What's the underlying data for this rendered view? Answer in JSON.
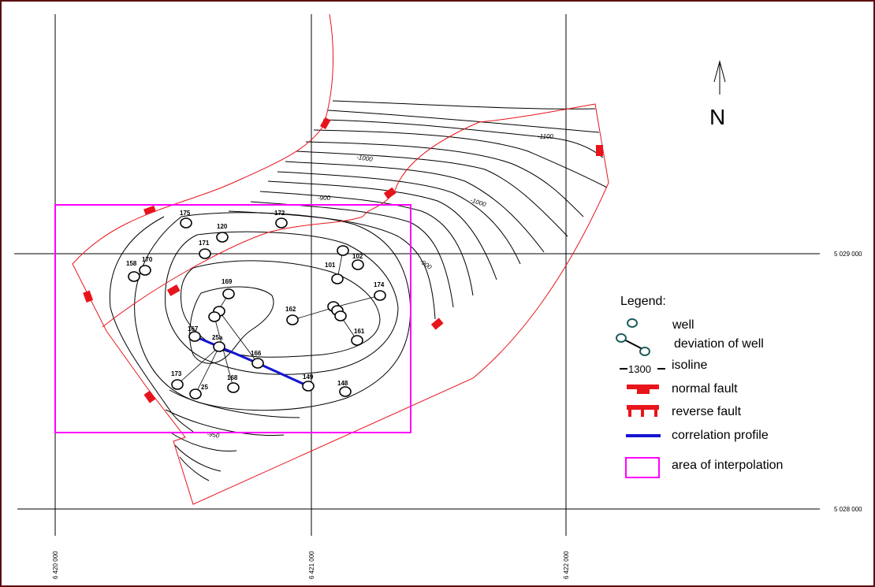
{
  "north_label": "N",
  "coordinates": {
    "x": [
      "6 420 000",
      "6 421 000",
      "6 422 000"
    ],
    "y": [
      "5 029 000",
      "5 028 000"
    ]
  },
  "isolines": [
    "-1100",
    "-1000",
    "-900",
    "-1000",
    "-900",
    "-950"
  ],
  "wells": [
    {
      "id": "175",
      "label": "175"
    },
    {
      "id": "172",
      "label": "172"
    },
    {
      "id": "120",
      "label": "120"
    },
    {
      "id": "171",
      "label": "171"
    },
    {
      "id": "158",
      "label": "158"
    },
    {
      "id": "170",
      "label": "170"
    },
    {
      "id": "101",
      "label": "101"
    },
    {
      "id": "102",
      "label": "102"
    },
    {
      "id": "169",
      "label": "169"
    },
    {
      "id": "174",
      "label": "174"
    },
    {
      "id": "162",
      "label": "162"
    },
    {
      "id": "161",
      "label": "161"
    },
    {
      "id": "167",
      "label": "167"
    },
    {
      "id": "25a",
      "label": "25a"
    },
    {
      "id": "166",
      "label": "166"
    },
    {
      "id": "149",
      "label": "149"
    },
    {
      "id": "173",
      "label": "173"
    },
    {
      "id": "25",
      "label": "25"
    },
    {
      "id": "168",
      "label": "168"
    },
    {
      "id": "148",
      "label": "148"
    }
  ],
  "legend": {
    "title": "Legend:",
    "well": "well",
    "deviation": "deviation of well",
    "isoline_sample": "1300",
    "isoline": "isoline",
    "normal_fault": "normal fault",
    "reverse_fault": "reverse fault",
    "profile": "correlation profile",
    "area": "area of interpolation"
  },
  "colors": {
    "fault": "#e8141c",
    "profile": "#1414d2",
    "interpolation_area": "#ff00ff",
    "well_legend": "#1f5c5c",
    "frame": "#5a0e0e"
  }
}
